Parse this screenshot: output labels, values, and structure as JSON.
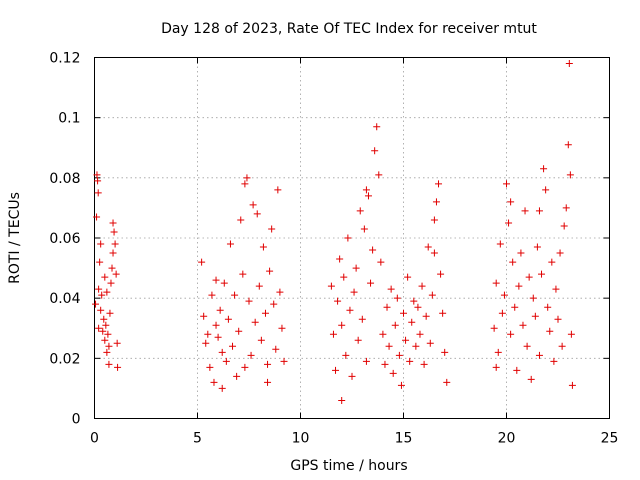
{
  "chart_data": {
    "type": "scatter",
    "title": "Day 128 of 2023, Rate Of TEC Index for receiver mtut",
    "xlabel": "GPS time / hours",
    "ylabel": "ROTI / TECUs",
    "xlim": [
      0,
      25
    ],
    "ylim": [
      0,
      0.12
    ],
    "xticks": [
      0,
      5,
      10,
      15,
      20,
      25
    ],
    "xtick_labels": [
      "0",
      "5",
      "10",
      "15",
      "20",
      "25"
    ],
    "yticks": [
      0,
      0.02,
      0.04,
      0.06,
      0.08,
      0.1,
      0.12
    ],
    "ytick_labels": [
      "0",
      "0.02",
      "0.04",
      "0.06",
      "0.08",
      "0.1",
      "0.12"
    ],
    "grid": true,
    "marker": "+",
    "marker_color": "#e00000",
    "series": [
      {
        "name": "ROTI",
        "points": [
          [
            0.05,
            0.038
          ],
          [
            0.1,
            0.067
          ],
          [
            0.12,
            0.081
          ],
          [
            0.15,
            0.079
          ],
          [
            0.18,
            0.075
          ],
          [
            0.2,
            0.043
          ],
          [
            0.25,
            0.052
          ],
          [
            0.3,
            0.036
          ],
          [
            0.35,
            0.041
          ],
          [
            0.4,
            0.029
          ],
          [
            0.45,
            0.033
          ],
          [
            0.5,
            0.026
          ],
          [
            0.55,
            0.031
          ],
          [
            0.6,
            0.022
          ],
          [
            0.65,
            0.028
          ],
          [
            0.7,
            0.018
          ],
          [
            0.75,
            0.035
          ],
          [
            0.8,
            0.045
          ],
          [
            0.85,
            0.05
          ],
          [
            0.9,
            0.055
          ],
          [
            0.95,
            0.062
          ],
          [
            1.0,
            0.058
          ],
          [
            1.05,
            0.048
          ],
          [
            1.1,
            0.025
          ],
          [
            1.12,
            0.017
          ],
          [
            0.3,
            0.058
          ],
          [
            0.5,
            0.047
          ],
          [
            0.9,
            0.065
          ],
          [
            0.6,
            0.042
          ],
          [
            0.7,
            0.024
          ],
          [
            0.2,
            0.03
          ],
          [
            5.2,
            0.052
          ],
          [
            5.3,
            0.034
          ],
          [
            5.4,
            0.025
          ],
          [
            5.5,
            0.028
          ],
          [
            5.6,
            0.017
          ],
          [
            5.7,
            0.041
          ],
          [
            5.8,
            0.012
          ],
          [
            5.9,
            0.031
          ],
          [
            6.0,
            0.027
          ],
          [
            6.1,
            0.036
          ],
          [
            6.2,
            0.022
          ],
          [
            6.3,
            0.045
          ],
          [
            6.4,
            0.019
          ],
          [
            6.5,
            0.033
          ],
          [
            6.6,
            0.058
          ],
          [
            6.7,
            0.024
          ],
          [
            6.8,
            0.041
          ],
          [
            6.9,
            0.014
          ],
          [
            7.0,
            0.029
          ],
          [
            7.1,
            0.066
          ],
          [
            7.2,
            0.048
          ],
          [
            7.3,
            0.078
          ],
          [
            7.4,
            0.08
          ],
          [
            7.5,
            0.039
          ],
          [
            7.6,
            0.021
          ],
          [
            7.7,
            0.071
          ],
          [
            7.8,
            0.032
          ],
          [
            7.9,
            0.068
          ],
          [
            8.0,
            0.044
          ],
          [
            8.1,
            0.026
          ],
          [
            8.2,
            0.057
          ],
          [
            8.3,
            0.035
          ],
          [
            8.4,
            0.018
          ],
          [
            8.5,
            0.049
          ],
          [
            8.6,
            0.063
          ],
          [
            8.7,
            0.038
          ],
          [
            8.8,
            0.023
          ],
          [
            8.9,
            0.076
          ],
          [
            9.0,
            0.042
          ],
          [
            9.1,
            0.03
          ],
          [
            9.2,
            0.019
          ],
          [
            6.2,
            0.01
          ],
          [
            7.3,
            0.017
          ],
          [
            8.4,
            0.012
          ],
          [
            5.9,
            0.046
          ],
          [
            11.5,
            0.044
          ],
          [
            11.6,
            0.028
          ],
          [
            11.7,
            0.016
          ],
          [
            11.8,
            0.039
          ],
          [
            11.9,
            0.053
          ],
          [
            12.0,
            0.031
          ],
          [
            12.1,
            0.047
          ],
          [
            12.2,
            0.021
          ],
          [
            12.3,
            0.06
          ],
          [
            12.4,
            0.036
          ],
          [
            12.5,
            0.014
          ],
          [
            12.6,
            0.042
          ],
          [
            12.7,
            0.05
          ],
          [
            12.8,
            0.026
          ],
          [
            12.9,
            0.069
          ],
          [
            13.0,
            0.033
          ],
          [
            13.1,
            0.063
          ],
          [
            13.2,
            0.019
          ],
          [
            13.3,
            0.074
          ],
          [
            13.4,
            0.045
          ],
          [
            13.5,
            0.056
          ],
          [
            13.6,
            0.089
          ],
          [
            13.7,
            0.097
          ],
          [
            13.8,
            0.081
          ],
          [
            13.9,
            0.052
          ],
          [
            14.0,
            0.028
          ],
          [
            14.1,
            0.018
          ],
          [
            14.2,
            0.037
          ],
          [
            14.3,
            0.024
          ],
          [
            14.4,
            0.043
          ],
          [
            14.5,
            0.015
          ],
          [
            14.6,
            0.031
          ],
          [
            14.7,
            0.04
          ],
          [
            14.8,
            0.021
          ],
          [
            14.9,
            0.011
          ],
          [
            15.0,
            0.035
          ],
          [
            15.1,
            0.026
          ],
          [
            15.2,
            0.047
          ],
          [
            15.3,
            0.019
          ],
          [
            15.4,
            0.032
          ],
          [
            15.5,
            0.039
          ],
          [
            15.6,
            0.024
          ],
          [
            15.7,
            0.037
          ],
          [
            15.8,
            0.028
          ],
          [
            15.9,
            0.044
          ],
          [
            16.0,
            0.018
          ],
          [
            16.1,
            0.034
          ],
          [
            16.2,
            0.057
          ],
          [
            16.3,
            0.025
          ],
          [
            16.4,
            0.041
          ],
          [
            16.5,
            0.066
          ],
          [
            16.6,
            0.072
          ],
          [
            16.7,
            0.078
          ],
          [
            16.8,
            0.048
          ],
          [
            16.9,
            0.035
          ],
          [
            17.0,
            0.022
          ],
          [
            17.1,
            0.012
          ],
          [
            12.0,
            0.006
          ],
          [
            13.2,
            0.076
          ],
          [
            16.5,
            0.055
          ],
          [
            19.4,
            0.03
          ],
          [
            19.5,
            0.045
          ],
          [
            19.6,
            0.022
          ],
          [
            19.7,
            0.058
          ],
          [
            19.8,
            0.035
          ],
          [
            19.9,
            0.041
          ],
          [
            20.0,
            0.078
          ],
          [
            20.1,
            0.065
          ],
          [
            20.2,
            0.028
          ],
          [
            20.3,
            0.052
          ],
          [
            20.4,
            0.037
          ],
          [
            20.5,
            0.016
          ],
          [
            20.6,
            0.044
          ],
          [
            20.7,
            0.055
          ],
          [
            20.8,
            0.031
          ],
          [
            20.9,
            0.069
          ],
          [
            21.0,
            0.024
          ],
          [
            21.1,
            0.047
          ],
          [
            21.2,
            0.013
          ],
          [
            21.3,
            0.04
          ],
          [
            21.4,
            0.034
          ],
          [
            21.5,
            0.057
          ],
          [
            21.6,
            0.021
          ],
          [
            21.7,
            0.048
          ],
          [
            21.8,
            0.083
          ],
          [
            21.9,
            0.076
          ],
          [
            22.0,
            0.037
          ],
          [
            22.1,
            0.029
          ],
          [
            22.2,
            0.052
          ],
          [
            22.3,
            0.019
          ],
          [
            22.4,
            0.043
          ],
          [
            22.5,
            0.033
          ],
          [
            22.6,
            0.055
          ],
          [
            22.7,
            0.024
          ],
          [
            22.8,
            0.064
          ],
          [
            22.9,
            0.07
          ],
          [
            23.0,
            0.091
          ],
          [
            23.05,
            0.118
          ],
          [
            23.1,
            0.081
          ],
          [
            23.15,
            0.028
          ],
          [
            23.2,
            0.011
          ],
          [
            21.6,
            0.069
          ],
          [
            20.2,
            0.072
          ],
          [
            19.5,
            0.017
          ]
        ]
      }
    ]
  }
}
